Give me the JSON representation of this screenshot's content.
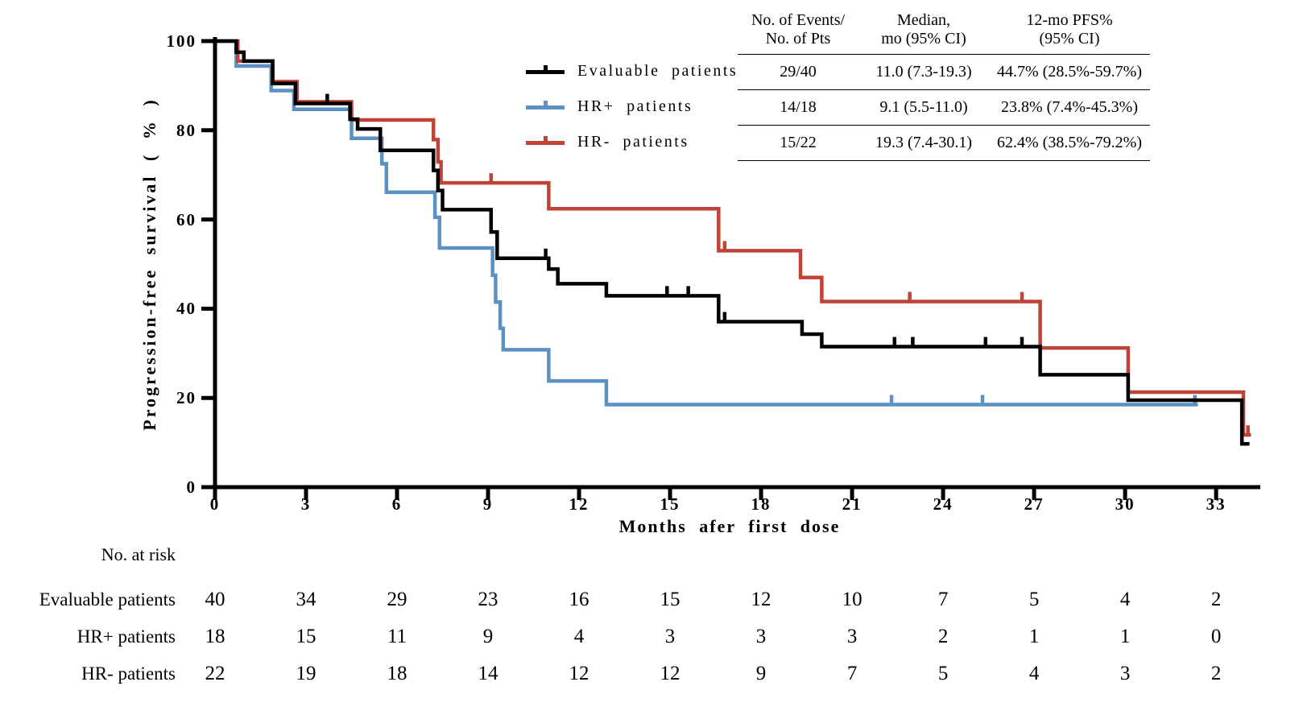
{
  "figure": {
    "ylabel": "Progression-free survival ( % )",
    "xlabel": "Months afer first dose",
    "y_ticks": [
      0,
      20,
      40,
      60,
      80,
      100
    ],
    "x_ticks": [
      0,
      3,
      6,
      9,
      12,
      15,
      18,
      21,
      24,
      27,
      30,
      33
    ]
  },
  "legend": {
    "items": [
      {
        "label": "Evaluable patients",
        "color": "#000000"
      },
      {
        "label": "HR+ patients",
        "color": "#5b91c3"
      },
      {
        "label": "HR- patients",
        "color": "#c14338"
      }
    ]
  },
  "stats_table": {
    "headers": [
      {
        "line1": "No. of Events/",
        "line2": "No. of Pts"
      },
      {
        "line1": "Median,",
        "line2": "mo (95% CI)"
      },
      {
        "line1": "12-mo PFS%",
        "line2": "(95% CI)"
      }
    ],
    "rows": [
      [
        "29/40",
        "11.0 (7.3-19.3)",
        "44.7% (28.5%-59.7%)"
      ],
      [
        "14/18",
        "9.1 (5.5-11.0)",
        "23.8% (7.4%-45.3%)"
      ],
      [
        "15/22",
        "19.3 (7.4-30.1)",
        "62.4% (38.5%-79.2%)"
      ]
    ]
  },
  "at_risk": {
    "title": "No. at risk",
    "months": [
      0,
      3,
      6,
      9,
      12,
      15,
      18,
      21,
      24,
      27,
      30,
      33
    ],
    "rows": [
      {
        "label": "Evaluable patients",
        "counts": [
          40,
          34,
          29,
          23,
          16,
          15,
          12,
          10,
          7,
          5,
          4,
          2
        ]
      },
      {
        "label": "HR+ patients",
        "counts": [
          18,
          15,
          11,
          9,
          4,
          3,
          3,
          3,
          2,
          1,
          1,
          0
        ]
      },
      {
        "label": "HR- patients",
        "counts": [
          22,
          19,
          18,
          14,
          12,
          12,
          9,
          7,
          5,
          4,
          3,
          2
        ]
      }
    ]
  },
  "chart_data": {
    "type": "line",
    "subtype": "kaplan_meier_step",
    "title": "",
    "xlabel": "Months afer first dose",
    "ylabel": "Progression-free survival (%)",
    "xlim": [
      0,
      34.5
    ],
    "ylim": [
      0,
      100
    ],
    "grid": false,
    "legend_position": "upper-center-left",
    "series": [
      {
        "name": "Evaluable patients",
        "color": "#000000",
        "end_month": 34.1,
        "steps": [
          [
            0,
            100
          ],
          [
            0.7,
            97.5
          ],
          [
            0.95,
            95.5
          ],
          [
            1.9,
            90.5
          ],
          [
            2.65,
            86
          ],
          [
            4.45,
            82.5
          ],
          [
            4.7,
            80.3
          ],
          [
            5.45,
            75.5
          ],
          [
            7.2,
            71
          ],
          [
            7.35,
            66.5
          ],
          [
            7.5,
            62.2
          ],
          [
            9.1,
            57.2
          ],
          [
            9.3,
            51.3
          ],
          [
            11,
            48.9
          ],
          [
            11.3,
            45.6
          ],
          [
            12.9,
            42.9
          ],
          [
            16.6,
            37.1
          ],
          [
            19.35,
            34.3
          ],
          [
            20,
            31.5
          ],
          [
            27.2,
            25.2
          ],
          [
            30.1,
            19.5
          ],
          [
            33.85,
            9.7
          ]
        ],
        "censors": [
          [
            3.7,
            86
          ],
          [
            10.9,
            51.3
          ],
          [
            14.9,
            42.9
          ],
          [
            15.6,
            42.9
          ],
          [
            16.8,
            37.1
          ],
          [
            22.4,
            31.5
          ],
          [
            23,
            31.5
          ],
          [
            25.4,
            31.5
          ],
          [
            26.6,
            31.5
          ]
        ]
      },
      {
        "name": "HR+ patients",
        "color": "#5b91c3",
        "end_month": 32.4,
        "steps": [
          [
            0,
            100
          ],
          [
            0.7,
            94.4
          ],
          [
            1.85,
            88.9
          ],
          [
            2.6,
            84.7
          ],
          [
            4.5,
            78.2
          ],
          [
            5.5,
            72.5
          ],
          [
            5.65,
            66.1
          ],
          [
            7.25,
            60.5
          ],
          [
            7.4,
            53.6
          ],
          [
            9.15,
            47.5
          ],
          [
            9.25,
            41.5
          ],
          [
            9.4,
            35.6
          ],
          [
            9.5,
            30.8
          ],
          [
            11,
            23.8
          ],
          [
            12.9,
            18.5
          ]
        ],
        "censors": [
          [
            22.3,
            18.5
          ],
          [
            25.3,
            18.5
          ],
          [
            32.3,
            18.5
          ]
        ]
      },
      {
        "name": "HR- patients",
        "color": "#c14338",
        "end_month": 34.15,
        "steps": [
          [
            0,
            100
          ],
          [
            0.75,
            95.5
          ],
          [
            1.9,
            90.9
          ],
          [
            2.7,
            86.4
          ],
          [
            4.5,
            82.3
          ],
          [
            7.2,
            77.9
          ],
          [
            7.35,
            72.9
          ],
          [
            7.45,
            68.2
          ],
          [
            11,
            62.4
          ],
          [
            16.6,
            53
          ],
          [
            19.3,
            47
          ],
          [
            20,
            41.6
          ],
          [
            27.2,
            31.2
          ],
          [
            30.1,
            21.3
          ],
          [
            33.9,
            11.7
          ]
        ],
        "censors": [
          [
            9.1,
            68.2
          ],
          [
            16.8,
            53
          ],
          [
            22.9,
            41.6
          ],
          [
            26.6,
            41.6
          ],
          [
            34.05,
            11.7
          ]
        ]
      }
    ]
  }
}
